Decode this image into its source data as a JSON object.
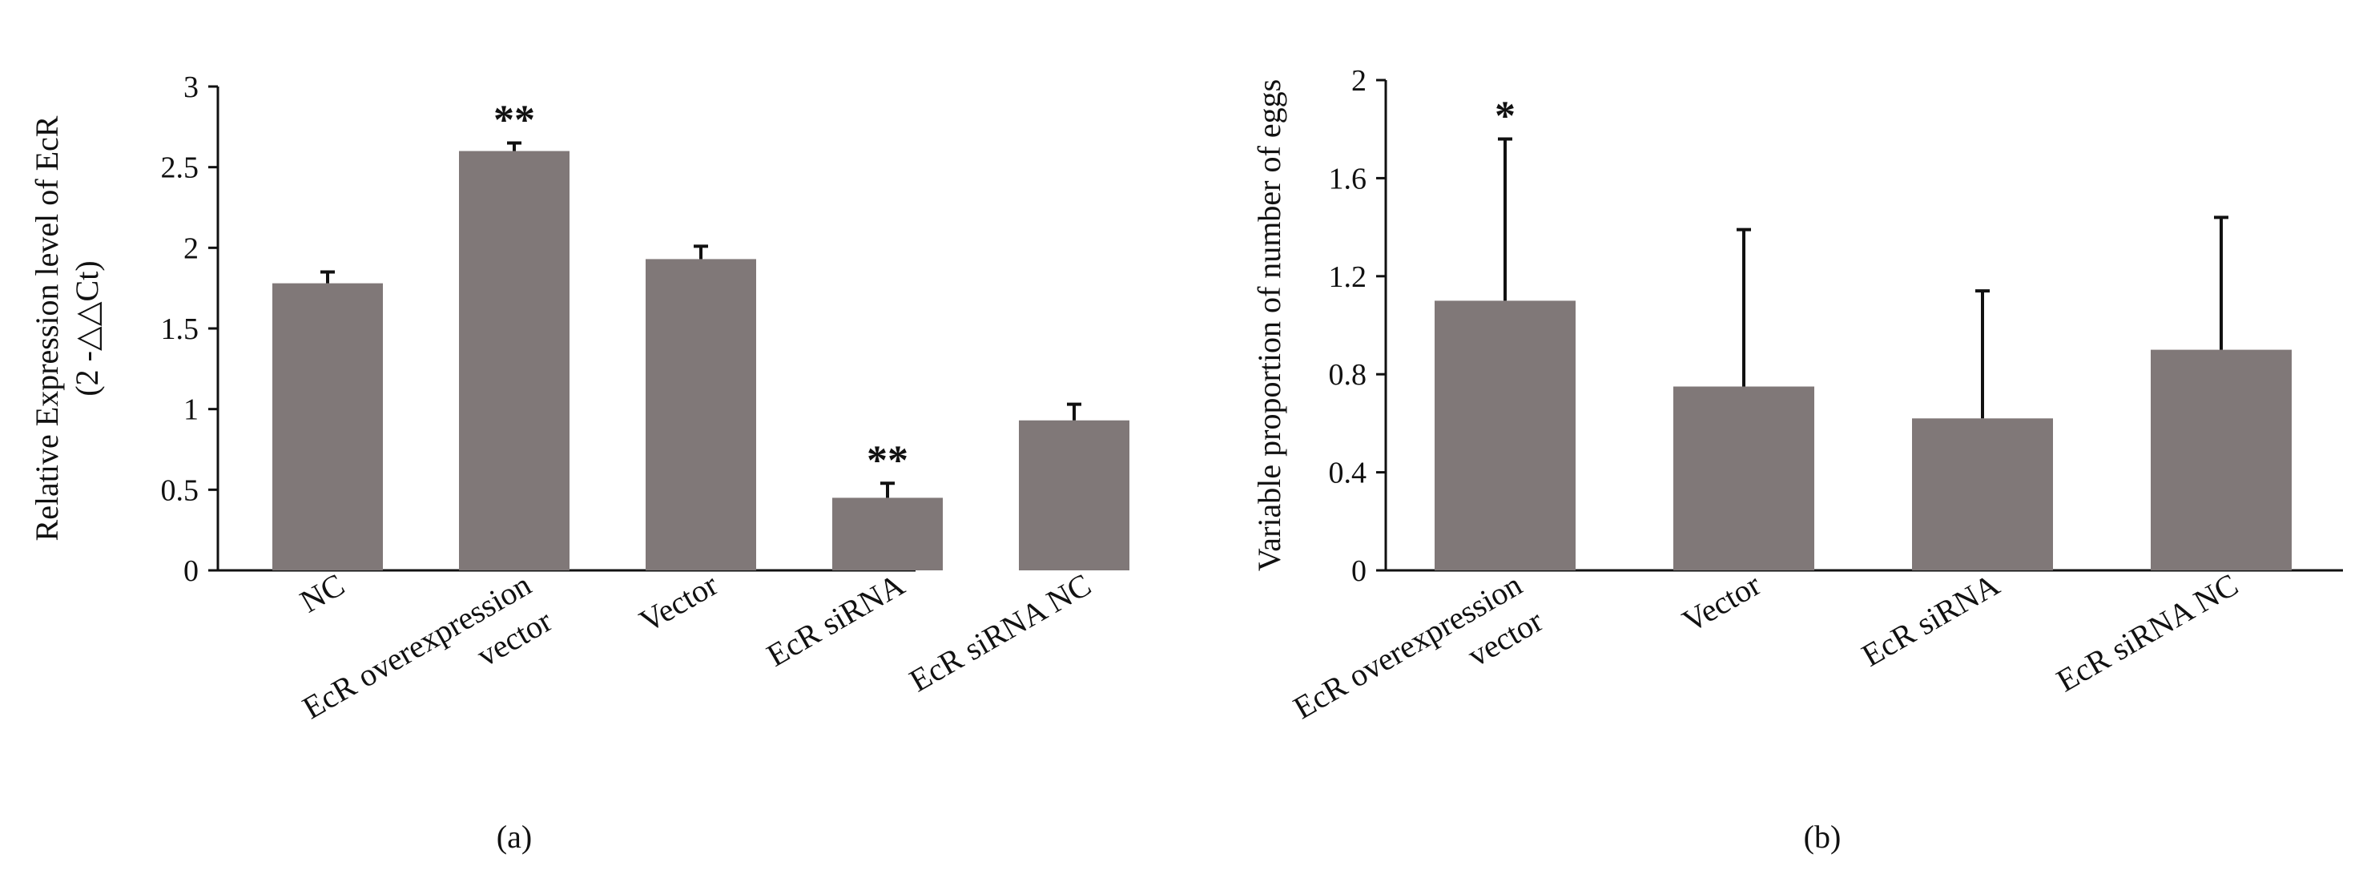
{
  "chart_data": [
    {
      "type": "bar",
      "panel_label": "(a)",
      "ylabel": "Relative Expression level of EcR",
      "ylabel_sub": "(2 -△△Ct)",
      "categories": [
        [
          "NC"
        ],
        [
          "EcR overexpression",
          "vector"
        ],
        [
          "Vector"
        ],
        [
          "EcR siRNA"
        ],
        [
          "EcR siRNA NC"
        ]
      ],
      "values": [
        1.78,
        2.6,
        1.93,
        0.45,
        0.93
      ],
      "errors": [
        0.07,
        0.05,
        0.08,
        0.09,
        0.1
      ],
      "annotations": [
        "",
        "**",
        "",
        "**",
        ""
      ],
      "ylim": [
        0,
        3
      ],
      "yticks": [
        0,
        0.5,
        1,
        1.5,
        2,
        2.5,
        3
      ],
      "ytick_labels": [
        "0",
        "0.5",
        "1",
        "1.5",
        "2",
        "2.5",
        "3"
      ],
      "bar_color": "#807878"
    },
    {
      "type": "bar",
      "panel_label": "(b)",
      "ylabel": "Variable proportion of number of eggs",
      "categories": [
        [
          "EcR overexpression",
          "vector"
        ],
        [
          "Vector"
        ],
        [
          "EcR siRNA"
        ],
        [
          "EcR siRNA NC"
        ]
      ],
      "values": [
        1.1,
        0.75,
        0.62,
        0.9
      ],
      "errors": [
        0.66,
        0.64,
        0.52,
        0.54
      ],
      "annotations": [
        "*",
        "",
        "",
        ""
      ],
      "ylim": [
        0,
        2
      ],
      "yticks": [
        0,
        0.4,
        0.8,
        1.2,
        1.6,
        2
      ],
      "ytick_labels": [
        "0",
        "0.4",
        "0.8",
        "1.2",
        "1.6",
        "2"
      ],
      "bar_color": "#807878"
    }
  ]
}
